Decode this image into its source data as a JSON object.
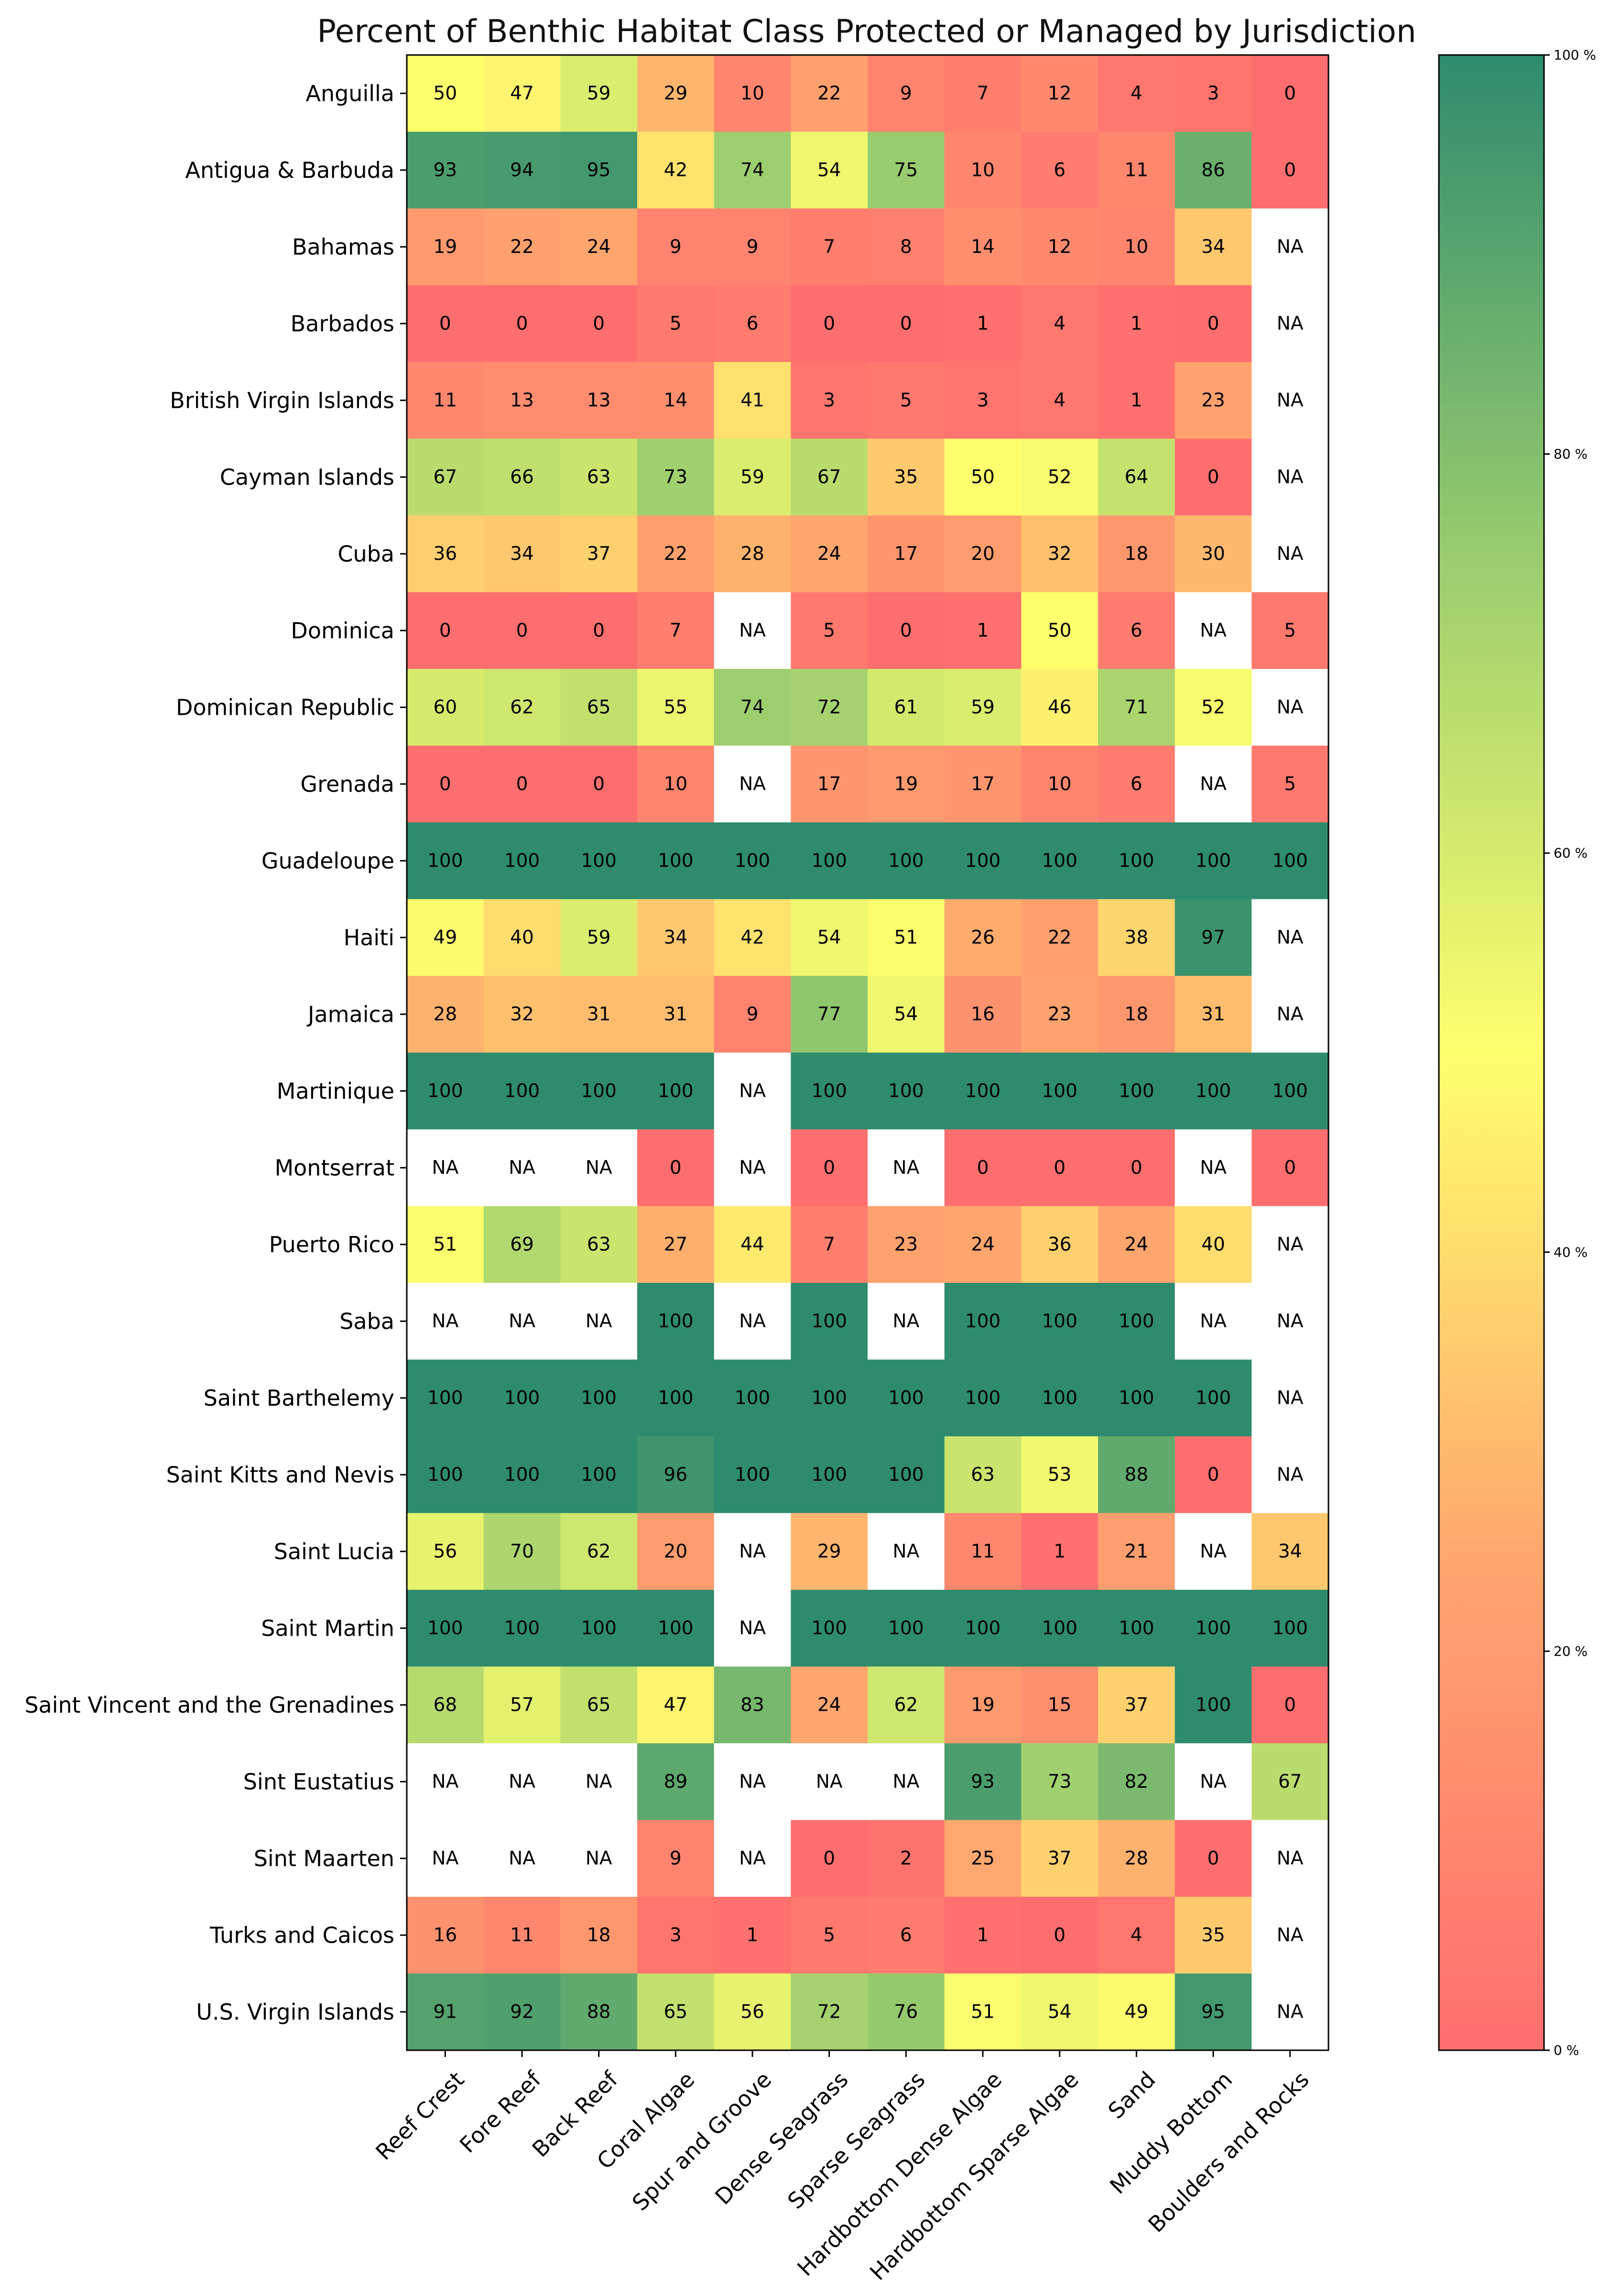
{
  "chart_data": {
    "type": "heatmap",
    "title": "Percent of Benthic Habitat Class Protected or Managed by Jurisdiction",
    "xlabel": "",
    "ylabel": "",
    "columns": [
      "Reef Crest",
      "Fore Reef",
      "Back Reef",
      "Coral Algae",
      "Spur and Groove",
      "Dense Seagrass",
      "Sparse Seagrass",
      "Hardbottom Dense Algae",
      "Hardbottom Sparse Algae",
      "Sand",
      "Muddy Bottom",
      "Boulders and Rocks"
    ],
    "rows": [
      "Anguilla",
      "Antigua & Barbuda",
      "Bahamas",
      "Barbados",
      "British Virgin Islands",
      "Cayman Islands",
      "Cuba",
      "Dominica",
      "Dominican Republic",
      "Grenada",
      "Guadeloupe",
      "Haiti",
      "Jamaica",
      "Martinique",
      "Montserrat",
      "Puerto Rico",
      "Saba",
      "Saint Barthelemy",
      "Saint Kitts and Nevis",
      "Saint Lucia",
      "Saint Martin",
      "Saint Vincent and the Grenadines",
      "Sint Eustatius",
      "Sint Maarten",
      "Turks and Caicos",
      "U.S. Virgin Islands"
    ],
    "values": [
      [
        50,
        47,
        59,
        29,
        10,
        22,
        9,
        7,
        12,
        4,
        3,
        0
      ],
      [
        93,
        94,
        95,
        42,
        74,
        54,
        75,
        10,
        6,
        11,
        86,
        0
      ],
      [
        19,
        22,
        24,
        9,
        9,
        7,
        8,
        14,
        12,
        10,
        34,
        "NA"
      ],
      [
        0,
        0,
        0,
        5,
        6,
        0,
        0,
        1,
        4,
        1,
        0,
        "NA"
      ],
      [
        11,
        13,
        13,
        14,
        41,
        3,
        5,
        3,
        4,
        1,
        23,
        "NA"
      ],
      [
        67,
        66,
        63,
        73,
        59,
        67,
        35,
        50,
        52,
        64,
        0,
        "NA"
      ],
      [
        36,
        34,
        37,
        22,
        28,
        24,
        17,
        20,
        32,
        18,
        30,
        "NA"
      ],
      [
        0,
        0,
        0,
        7,
        "NA",
        5,
        0,
        1,
        50,
        6,
        "NA",
        5
      ],
      [
        60,
        62,
        65,
        55,
        74,
        72,
        61,
        59,
        46,
        71,
        52,
        "NA"
      ],
      [
        0,
        0,
        0,
        10,
        "NA",
        17,
        19,
        17,
        10,
        6,
        "NA",
        5
      ],
      [
        100,
        100,
        100,
        100,
        100,
        100,
        100,
        100,
        100,
        100,
        100,
        100
      ],
      [
        49,
        40,
        59,
        34,
        42,
        54,
        51,
        26,
        22,
        38,
        97,
        "NA"
      ],
      [
        28,
        32,
        31,
        31,
        9,
        77,
        54,
        16,
        23,
        18,
        31,
        "NA"
      ],
      [
        100,
        100,
        100,
        100,
        "NA",
        100,
        100,
        100,
        100,
        100,
        100,
        100
      ],
      [
        "NA",
        "NA",
        "NA",
        0,
        "NA",
        0,
        "NA",
        0,
        0,
        0,
        "NA",
        0
      ],
      [
        51,
        69,
        63,
        27,
        44,
        7,
        23,
        24,
        36,
        24,
        40,
        "NA"
      ],
      [
        "NA",
        "NA",
        "NA",
        100,
        "NA",
        100,
        "NA",
        100,
        100,
        100,
        "NA",
        "NA"
      ],
      [
        100,
        100,
        100,
        100,
        100,
        100,
        100,
        100,
        100,
        100,
        100,
        "NA"
      ],
      [
        100,
        100,
        100,
        96,
        100,
        100,
        100,
        63,
        53,
        88,
        0,
        "NA"
      ],
      [
        56,
        70,
        62,
        20,
        "NA",
        29,
        "NA",
        11,
        1,
        21,
        "NA",
        34
      ],
      [
        100,
        100,
        100,
        100,
        "NA",
        100,
        100,
        100,
        100,
        100,
        100,
        100
      ],
      [
        68,
        57,
        65,
        47,
        83,
        24,
        62,
        19,
        15,
        37,
        100,
        0
      ],
      [
        "NA",
        "NA",
        "NA",
        89,
        "NA",
        "NA",
        "NA",
        93,
        73,
        82,
        "NA",
        67
      ],
      [
        "NA",
        "NA",
        "NA",
        9,
        "NA",
        0,
        2,
        25,
        37,
        28,
        0,
        "NA"
      ],
      [
        16,
        11,
        18,
        3,
        1,
        5,
        6,
        1,
        0,
        4,
        35,
        "NA"
      ],
      [
        91,
        92,
        88,
        65,
        56,
        72,
        76,
        51,
        54,
        49,
        95,
        "NA"
      ]
    ],
    "na_label": "NA",
    "value_range": [
      0,
      100
    ],
    "colorbar": {
      "ticks": [
        0,
        20,
        40,
        60,
        80,
        100
      ],
      "tick_labels": [
        "0 %",
        "20 %",
        "40 %",
        "60 %",
        "80 %",
        "100 %"
      ],
      "colors": [
        "#ff6e6e",
        "#ffa76e",
        "#ffff6e",
        "#99cc6e",
        "#2e8b6e"
      ]
    },
    "legend_position": "right"
  }
}
